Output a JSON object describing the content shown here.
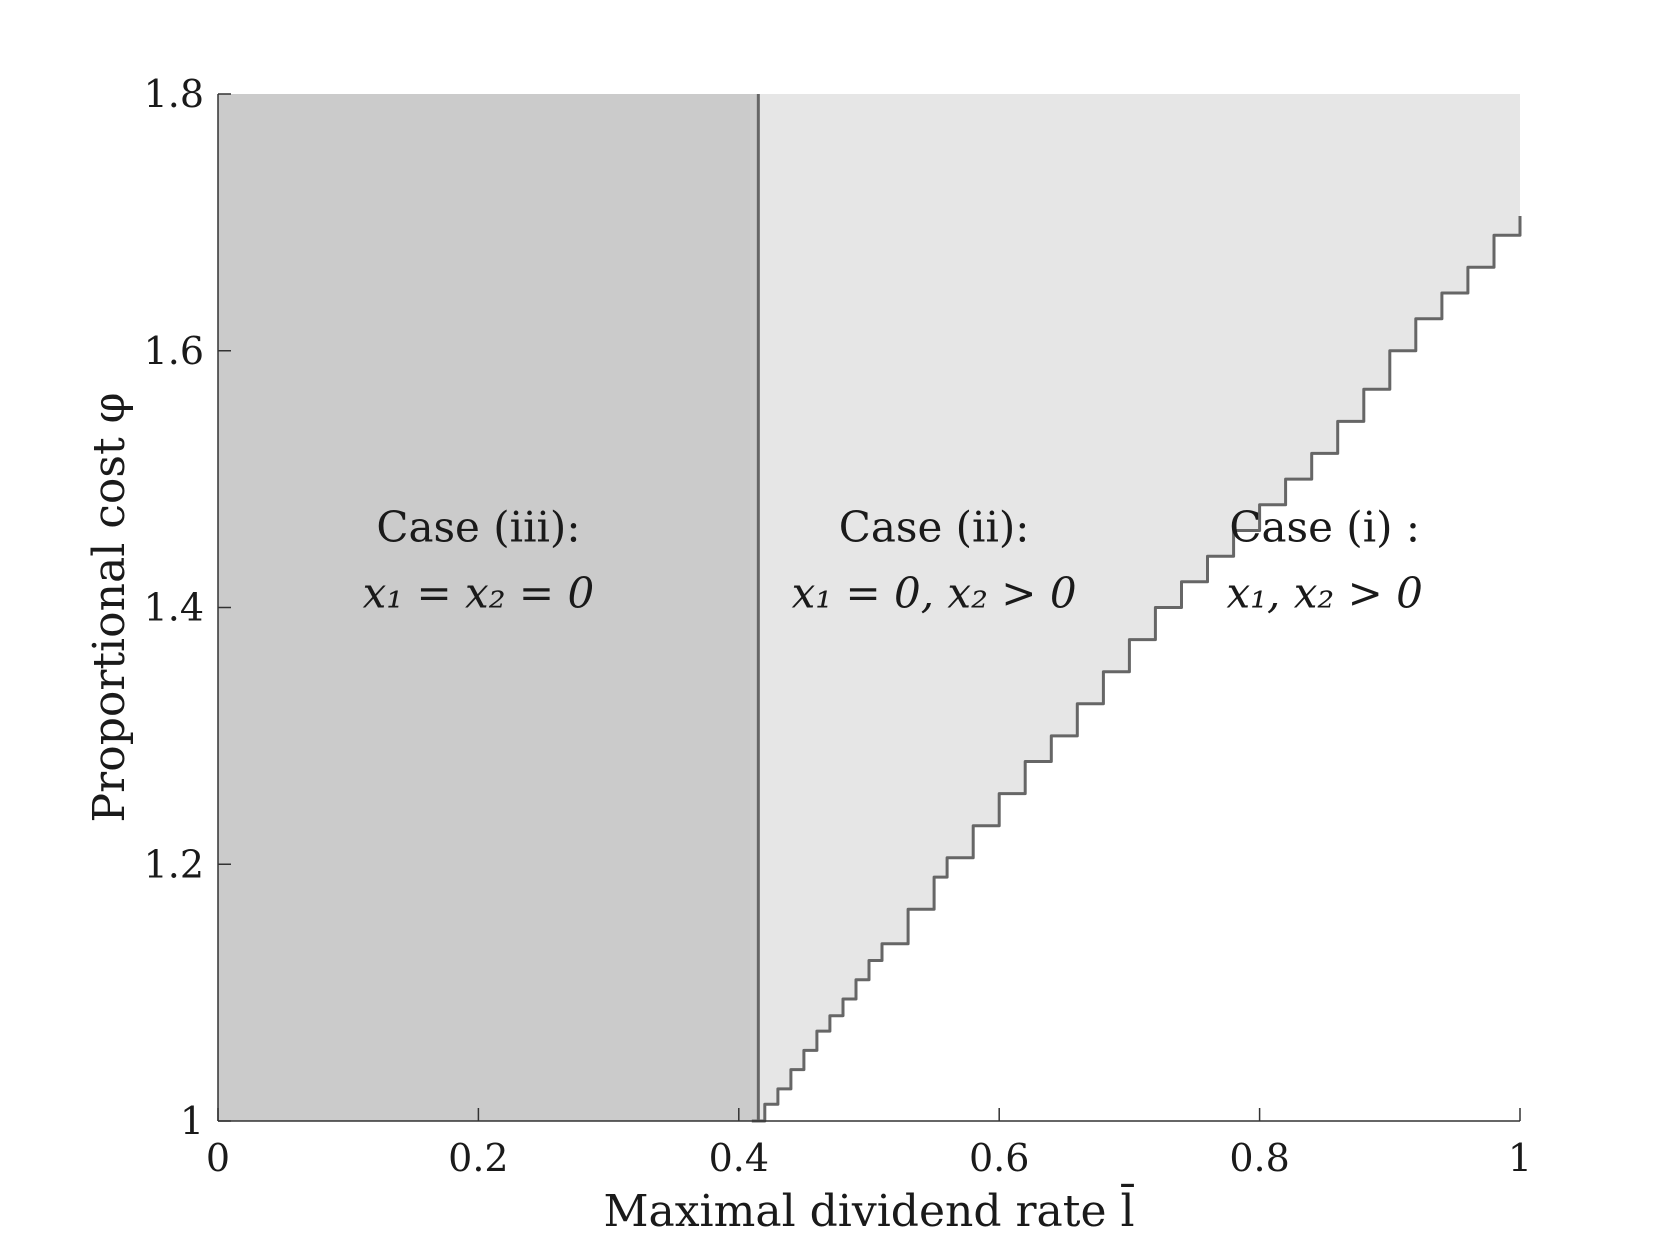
{
  "chart_data": {
    "type": "area",
    "xlabel": "Maximal dividend rate l̄",
    "ylabel": "Proportional cost φ",
    "xlim": [
      0,
      1
    ],
    "ylim": [
      1,
      1.8
    ],
    "xticks": [
      0,
      0.2,
      0.4,
      0.6,
      0.8,
      1
    ],
    "xtick_labels": [
      "0",
      "0.2",
      "0.4",
      "0.6",
      "0.8",
      "1"
    ],
    "yticks": [
      1,
      1.2,
      1.4,
      1.6,
      1.8
    ],
    "ytick_labels": [
      "1",
      "1.2",
      "1.4",
      "1.6",
      "1.8"
    ],
    "grid": false,
    "vertical_boundary_x": 0.415,
    "boundary": {
      "x": [
        0.41,
        0.42,
        0.43,
        0.44,
        0.45,
        0.46,
        0.47,
        0.48,
        0.49,
        0.5,
        0.51,
        0.53,
        0.55,
        0.56,
        0.58,
        0.6,
        0.62,
        0.64,
        0.66,
        0.68,
        0.7,
        0.72,
        0.74,
        0.76,
        0.78,
        0.8,
        0.82,
        0.84,
        0.86,
        0.88,
        0.9,
        0.92,
        0.94,
        0.96,
        0.98,
        1.0
      ],
      "y": [
        1.0,
        1.013,
        1.025,
        1.04,
        1.055,
        1.07,
        1.082,
        1.095,
        1.11,
        1.125,
        1.138,
        1.165,
        1.19,
        1.205,
        1.23,
        1.255,
        1.28,
        1.3,
        1.325,
        1.35,
        1.375,
        1.4,
        1.42,
        1.44,
        1.46,
        1.48,
        1.5,
        1.52,
        1.545,
        1.57,
        1.6,
        1.625,
        1.645,
        1.665,
        1.69,
        1.705
      ]
    },
    "regions": [
      {
        "name": "Case (iii):",
        "math": "x₁ = x₂ = 0",
        "label_x": 0.2,
        "color": "#cbcbcb"
      },
      {
        "name": "Case (ii):",
        "math": "x₁ = 0, x₂ > 0",
        "label_x": 0.55,
        "color": "#e6e6e6"
      },
      {
        "name": "Case (i) :",
        "math": "x₁, x₂ > 0",
        "label_x": 0.85,
        "color": "#ffffff"
      }
    ],
    "line_color": "#666666"
  }
}
